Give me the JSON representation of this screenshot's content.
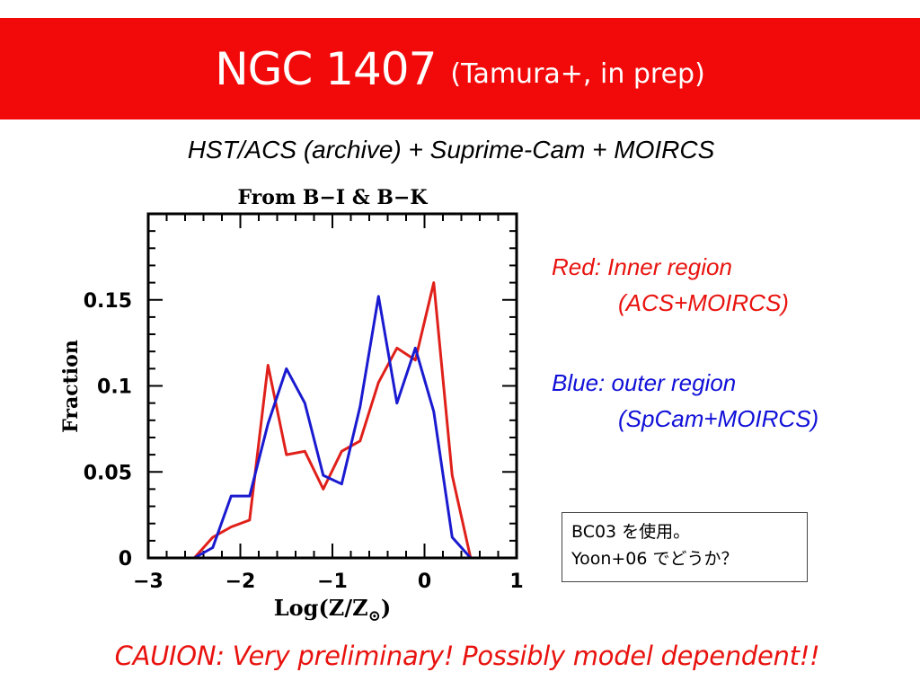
{
  "slide": {
    "title": "NGC 1407",
    "title_note": "(Tamura+, in prep)",
    "subtitle": "HST/ACS (archive) + Suprime-Cam + MOIRCS",
    "caution": "CAUION: Very preliminary! Possibly model dependent!!"
  },
  "legend": {
    "red_line1": "Red: Inner region",
    "red_line2": "(ACS+MOIRCS)",
    "blue_line1": "Blue: outer region",
    "blue_line2": "(SpCam+MOIRCS)"
  },
  "note": {
    "line1": "BC03 を使用。",
    "line2": "Yoon+06 でどうか？"
  },
  "colors": {
    "banner": "#f20a0a",
    "red_series": "#e0201a",
    "blue_series": "#1a1ad0"
  },
  "chart_data": {
    "type": "line",
    "title": "From B−I & B−K",
    "xlabel": "Log(Z/Z⊙)",
    "ylabel": "Fraction",
    "xlim": [
      -3,
      1
    ],
    "ylim": [
      0,
      0.2
    ],
    "xticks": [
      -3,
      -2,
      -1,
      0,
      1
    ],
    "xtick_labels": [
      "−3",
      "−2",
      "−1",
      "0",
      "1"
    ],
    "yticks": [
      0,
      0.05,
      0.1,
      0.15
    ],
    "ytick_labels": [
      "0",
      "0.05",
      "0.1",
      "0.15"
    ],
    "grid": false,
    "series": [
      {
        "color": "red",
        "x": [
          -3.0,
          -2.5,
          -2.3,
          -2.1,
          -1.9,
          -1.7,
          -1.5,
          -1.3,
          -1.1,
          -0.9,
          -0.7,
          -0.5,
          -0.3,
          -0.1,
          0.1,
          0.3,
          0.5
        ],
        "y": [
          0.0,
          0.0,
          0.012,
          0.018,
          0.022,
          0.112,
          0.06,
          0.062,
          0.04,
          0.062,
          0.068,
          0.102,
          0.122,
          0.115,
          0.16,
          0.048,
          0.0
        ]
      },
      {
        "color": "blue",
        "x": [
          -3.0,
          -2.5,
          -2.3,
          -2.1,
          -1.9,
          -1.7,
          -1.5,
          -1.3,
          -1.1,
          -0.9,
          -0.7,
          -0.5,
          -0.3,
          -0.1,
          0.1,
          0.3,
          0.5
        ],
        "y": [
          0.0,
          0.0,
          0.006,
          0.036,
          0.036,
          0.078,
          0.11,
          0.09,
          0.048,
          0.043,
          0.088,
          0.152,
          0.09,
          0.122,
          0.085,
          0.012,
          0.0
        ]
      }
    ]
  }
}
